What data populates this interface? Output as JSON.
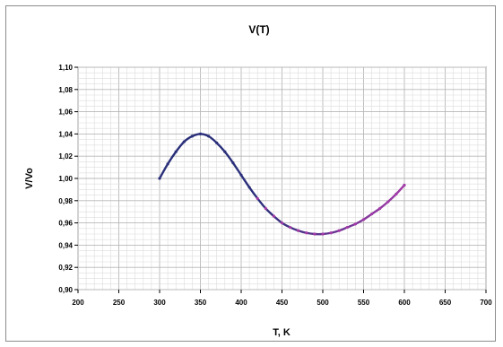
{
  "chart_data": {
    "type": "line",
    "title": "V(T)",
    "xlabel": "T, K",
    "ylabel": "V/Vo",
    "xlim": [
      200,
      700
    ],
    "ylim": [
      0.9,
      1.1
    ],
    "x_ticks": [
      "200",
      "250",
      "300",
      "350",
      "400",
      "450",
      "500",
      "550",
      "600",
      "650",
      "700"
    ],
    "y_ticks": [
      "0,90",
      "0,92",
      "0,94",
      "0,96",
      "0,98",
      "1,00",
      "1,02",
      "1,04",
      "1,06",
      "1,08",
      "1,10"
    ],
    "grid": true,
    "legend": "none",
    "series": [
      {
        "color_start": "#2a2f7a",
        "color_end": "#a23aa8",
        "x": [
          300,
          310,
          320,
          330,
          340,
          350,
          360,
          370,
          380,
          390,
          400,
          410,
          420,
          430,
          440,
          450,
          460,
          470,
          480,
          490,
          500,
          510,
          520,
          530,
          540,
          550,
          560,
          570,
          580,
          590,
          600
        ],
        "y": [
          1.0,
          1.013,
          1.024,
          1.033,
          1.038,
          1.04,
          1.038,
          1.032,
          1.024,
          1.014,
          1.003,
          0.992,
          0.982,
          0.973,
          0.966,
          0.96,
          0.956,
          0.953,
          0.951,
          0.95,
          0.95,
          0.951,
          0.953,
          0.956,
          0.959,
          0.963,
          0.968,
          0.973,
          0.979,
          0.986,
          0.994
        ]
      }
    ]
  }
}
